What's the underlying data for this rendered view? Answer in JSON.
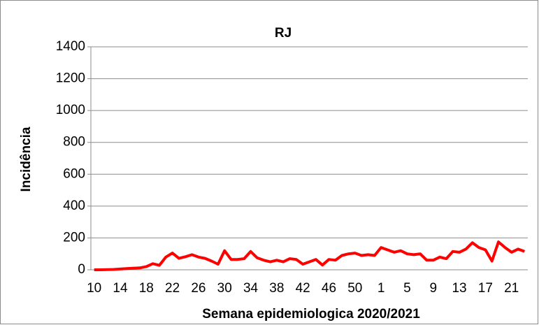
{
  "chart_data": {
    "type": "line",
    "title": "RJ",
    "x_label": "Semana epidemiologica 2020/2021",
    "y_label": "Incidência",
    "categories": [
      "10",
      null,
      null,
      null,
      "14",
      null,
      null,
      null,
      "18",
      null,
      null,
      null,
      "22",
      null,
      null,
      null,
      "26",
      null,
      null,
      null,
      "30",
      null,
      null,
      null,
      "34",
      null,
      null,
      null,
      "38",
      null,
      null,
      null,
      "42",
      null,
      null,
      null,
      "46",
      null,
      null,
      null,
      "50",
      null,
      null,
      null,
      "1",
      null,
      null,
      null,
      "5",
      null,
      null,
      null,
      "9",
      null,
      null,
      null,
      "13",
      null,
      null,
      null,
      "17",
      null,
      null,
      null,
      "21",
      null,
      null
    ],
    "values": [
      0,
      0,
      1,
      2,
      5,
      8,
      10,
      12,
      20,
      38,
      28,
      80,
      105,
      72,
      82,
      95,
      80,
      72,
      55,
      35,
      120,
      65,
      65,
      70,
      115,
      75,
      60,
      50,
      60,
      50,
      70,
      65,
      35,
      50,
      65,
      30,
      65,
      60,
      90,
      100,
      105,
      90,
      95,
      90,
      140,
      125,
      110,
      120,
      100,
      95,
      100,
      60,
      60,
      80,
      70,
      115,
      110,
      130,
      170,
      140,
      125,
      55,
      175,
      140,
      110,
      130,
      115
    ],
    "color": "#ff0000",
    "ylim": [
      0,
      1400
    ],
    "yticks": [
      0,
      200,
      400,
      600,
      800,
      1000,
      1200,
      1400
    ],
    "grid": true
  }
}
